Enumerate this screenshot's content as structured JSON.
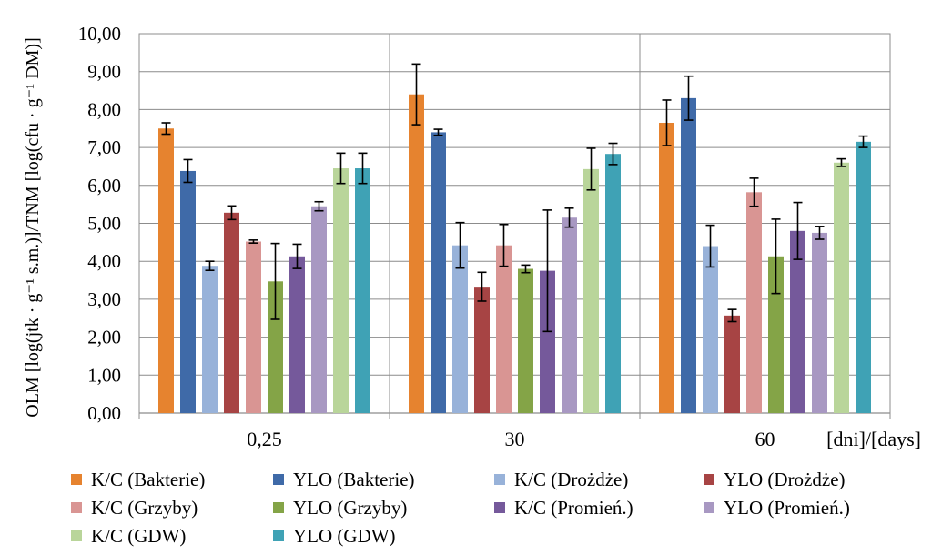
{
  "chart_data": {
    "type": "bar",
    "title": "",
    "ylabel": "OLM [log(jtk · g⁻¹ s.m.)]/TNM [log(cfu · g⁻¹ DM)]",
    "xlabel": "[dni]/[days]",
    "ylim": [
      0,
      10
    ],
    "y_ticks": [
      "0,00",
      "1,00",
      "2,00",
      "3,00",
      "4,00",
      "5,00",
      "6,00",
      "7,00",
      "8,00",
      "9,00",
      "10,00"
    ],
    "grid": true,
    "legend_position": "bottom",
    "categories": [
      "0,25",
      "30",
      "60"
    ],
    "series": [
      {
        "name": "K/C (Bakterie)",
        "color": "#E6832F",
        "values": [
          7.5,
          8.4,
          7.65
        ],
        "errors": [
          0.15,
          0.8,
          0.6
        ]
      },
      {
        "name": "YLO (Bakterie)",
        "color": "#3F6AA8",
        "values": [
          6.38,
          7.4,
          8.3
        ],
        "errors": [
          0.3,
          0.08,
          0.58
        ]
      },
      {
        "name": "K/C (Drożdże)",
        "color": "#98B2D9",
        "values": [
          3.88,
          4.42,
          4.4
        ],
        "errors": [
          0.12,
          0.6,
          0.55
        ]
      },
      {
        "name": "YLO (Drożdże)",
        "color": "#A74444",
        "values": [
          5.28,
          3.33,
          2.57
        ],
        "errors": [
          0.18,
          0.38,
          0.16
        ]
      },
      {
        "name": "K/C (Grzyby)",
        "color": "#D99593",
        "values": [
          4.52,
          4.42,
          5.82
        ],
        "errors": [
          0.04,
          0.55,
          0.37
        ]
      },
      {
        "name": "YLO (Grzyby)",
        "color": "#84A447",
        "values": [
          3.47,
          3.8,
          4.13
        ],
        "errors": [
          1.0,
          0.1,
          0.98
        ]
      },
      {
        "name": "K/C (Promień.)",
        "color": "#75599B",
        "values": [
          4.13,
          3.75,
          4.8
        ],
        "errors": [
          0.32,
          1.6,
          0.75
        ]
      },
      {
        "name": "YLO (Promień.)",
        "color": "#A898C2",
        "values": [
          5.45,
          5.15,
          4.75
        ],
        "errors": [
          0.12,
          0.25,
          0.17
        ]
      },
      {
        "name": "K/C (GDW)",
        "color": "#B9D59A",
        "values": [
          6.45,
          6.43,
          6.6
        ],
        "errors": [
          0.4,
          0.55,
          0.1
        ]
      },
      {
        "name": "YLO (GDW)",
        "color": "#3FA2B5",
        "values": [
          6.45,
          6.83,
          7.15
        ],
        "errors": [
          0.4,
          0.28,
          0.15
        ]
      }
    ]
  }
}
